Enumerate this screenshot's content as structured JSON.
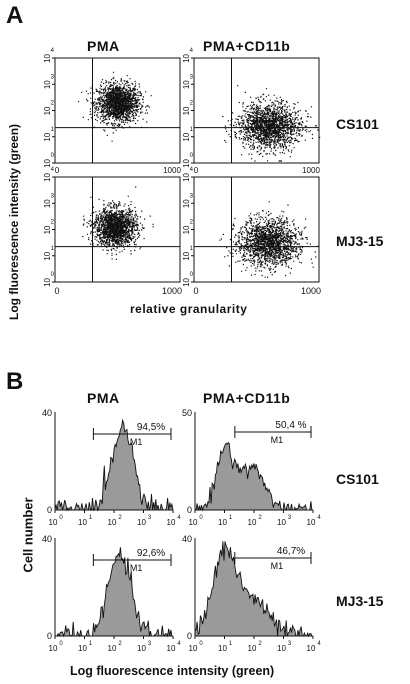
{
  "figure": {
    "panel_A": {
      "letter": "A",
      "column_titles": [
        "PMA",
        "PMA+CD11b"
      ],
      "row_labels": [
        "CS101",
        "MJ3-15"
      ],
      "y_axis_title": "Log fluorescence intensity (green)",
      "x_axis_title": "relative  granularity",
      "x_ticks": [
        "0",
        "1000"
      ],
      "y_ticks": [
        "10",
        "10",
        "10",
        "10",
        "10"
      ],
      "y_tick_exponents": [
        "0",
        "1",
        "2",
        "3",
        "4"
      ]
    },
    "panel_B": {
      "letter": "B",
      "column_titles": [
        "PMA",
        "PMA+CD11b"
      ],
      "row_labels": [
        "CS101",
        "MJ3-15"
      ],
      "y_axis_title": "Cell number",
      "x_axis_title": "Log fluorescence intensity (green)",
      "x_ticks": [
        "10",
        "10",
        "10",
        "10",
        "10"
      ],
      "x_tick_exponents": [
        "0",
        "1",
        "2",
        "3",
        "4"
      ],
      "marker_label": "M1",
      "percentages": [
        "94,5%",
        "50,4 %",
        "92,6%",
        "46,7%"
      ],
      "y_max_labels": [
        "40",
        "50",
        "40",
        "40"
      ],
      "y_zero": "0"
    }
  },
  "colors": {
    "ink": "#111111",
    "fill": "#9a9a9a"
  },
  "chart_data": [
    {
      "type": "scatter",
      "title": "",
      "xlabel": "relative  granularity",
      "ylabel": "Log fluorescence intensity (green)",
      "xlim": [
        0,
        1000
      ],
      "ylim_log10": [
        0,
        4
      ],
      "panels": [
        {
          "condition": "PMA",
          "line": "CS101",
          "cluster_center": {
            "x": 500,
            "log10_y": 2.3
          }
        },
        {
          "condition": "PMA+CD11b",
          "line": "CS101",
          "cluster_center": {
            "x": 550,
            "log10_y": 1.4
          }
        },
        {
          "condition": "PMA",
          "line": "MJ3-15",
          "cluster_center": {
            "x": 480,
            "log10_y": 2.1
          }
        },
        {
          "condition": "PMA+CD11b",
          "line": "MJ3-15",
          "cluster_center": {
            "x": 550,
            "log10_y": 1.5
          }
        }
      ]
    },
    {
      "type": "area",
      "title": "",
      "xlabel": "Log fluorescence intensity (green)",
      "ylabel": "Cell number",
      "x_scale": "log",
      "xlim": [
        1,
        10000
      ],
      "marker": "M1",
      "panels": [
        {
          "condition": "PMA",
          "line": "CS101",
          "ylim": [
            0,
            40
          ],
          "M1_percent": "94,5%",
          "peak_log10_x": 2.3
        },
        {
          "condition": "PMA+CD11b",
          "line": "CS101",
          "ylim": [
            0,
            50
          ],
          "M1_percent": "50,4 %",
          "peak_log10_x": 1.0
        },
        {
          "condition": "PMA",
          "line": "MJ3-15",
          "ylim": [
            0,
            40
          ],
          "M1_percent": "92,6%",
          "peak_log10_x": 2.2
        },
        {
          "condition": "PMA+CD11b",
          "line": "MJ3-15",
          "ylim": [
            0,
            40
          ],
          "M1_percent": "46,7%",
          "peak_log10_x": 1.0
        }
      ]
    }
  ]
}
